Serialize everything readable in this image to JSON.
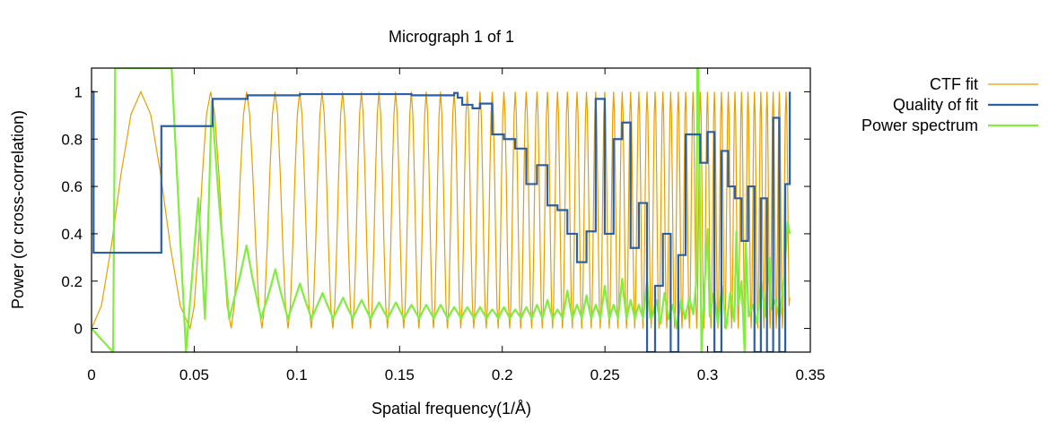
{
  "chart_data": {
    "type": "line",
    "title": "Micrograph 1 of 1",
    "xlabel": "Spatial frequency(1/Å)",
    "ylabel": "Power (or cross-correlation)",
    "xlim": [
      0,
      0.35
    ],
    "ylim": [
      -0.1,
      1.1
    ],
    "xticks": [
      0,
      0.05,
      0.1,
      0.15,
      0.2,
      0.25,
      0.3,
      0.35
    ],
    "xtick_labels": [
      "0",
      "0.05",
      "0.1",
      "0.15",
      "0.2",
      "0.25",
      "0.3",
      "0.35"
    ],
    "yticks": [
      0,
      0.2,
      0.4,
      0.6,
      0.8,
      1
    ],
    "ytick_labels": [
      "0",
      "0.2",
      "0.4",
      "0.6",
      "0.8",
      "1"
    ],
    "grid": false,
    "legend_position": "top-right, outside plot",
    "series": [
      {
        "name": "CTF fit",
        "color": "#e69f00",
        "kind": "oscillating CTF model",
        "x_range": [
          0,
          0.34
        ],
        "peak_x": [
          0.034,
          0.0585,
          0.0755,
          0.0895,
          0.1015,
          0.1125,
          0.1225,
          0.1315,
          0.14,
          0.1482,
          0.1558,
          0.163,
          0.17,
          0.1766,
          0.183,
          0.1892,
          0.1951,
          0.2008,
          0.2063,
          0.2117,
          0.2169,
          0.222,
          0.2269,
          0.2317,
          0.2364,
          0.241,
          0.2455,
          0.2499,
          0.2542,
          0.2584,
          0.2625,
          0.2665,
          0.2705,
          0.2744,
          0.2782,
          0.282,
          0.2857,
          0.2893,
          0.2929,
          0.2964,
          0.2999,
          0.3033,
          0.3067,
          0.31,
          0.3133,
          0.3165,
          0.3197,
          0.3228,
          0.3259,
          0.3289,
          0.3319,
          0.3349,
          0.3378
        ],
        "zero_x": [
          0.0,
          0.048,
          0.068,
          0.083,
          0.0957,
          0.107,
          0.1175,
          0.127,
          0.1358,
          0.1441,
          0.152,
          0.1594,
          0.1665,
          0.1733,
          0.1798,
          0.1861,
          0.1922,
          0.198,
          0.2036,
          0.209,
          0.2143,
          0.2195,
          0.2245,
          0.2293,
          0.2341,
          0.2387,
          0.2433,
          0.2477,
          0.2521,
          0.2563,
          0.2605,
          0.2645,
          0.2685,
          0.2725,
          0.2763,
          0.2801,
          0.2839,
          0.2875,
          0.2911,
          0.2947,
          0.2982,
          0.3016,
          0.305,
          0.3084,
          0.3117,
          0.3149,
          0.3181,
          0.3212,
          0.3244,
          0.3274,
          0.3304,
          0.3334,
          0.3364,
          0.34
        ],
        "end_value": 0.13
      },
      {
        "name": "Quality of fit",
        "color": "#2b5fa8",
        "kind": "step",
        "x": [
          0,
          0.001,
          0.034,
          0.059,
          0.076,
          0.1015,
          0.1125,
          0.1558,
          0.163,
          0.17,
          0.1766,
          0.1783,
          0.1805,
          0.1855,
          0.1892,
          0.1951,
          0.2008,
          0.2063,
          0.2117,
          0.2169,
          0.222,
          0.2269,
          0.2317,
          0.2364,
          0.241,
          0.2455,
          0.2499,
          0.2542,
          0.2584,
          0.2625,
          0.2665,
          0.2705,
          0.2744,
          0.2782,
          0.282,
          0.2857,
          0.2893,
          0.2929,
          0.2964,
          0.2999,
          0.3033,
          0.3067,
          0.31,
          0.3133,
          0.3165,
          0.3197,
          0.3228,
          0.3259,
          0.3289,
          0.3319,
          0.3349,
          0.3378,
          0.34
        ],
        "y": [
          1.0,
          0.32,
          0.855,
          0.97,
          0.985,
          0.99,
          0.99,
          0.985,
          0.985,
          0.985,
          0.995,
          0.975,
          0.945,
          0.93,
          0.95,
          0.82,
          0.8,
          0.76,
          0.61,
          0.69,
          0.52,
          0.5,
          0.4,
          0.28,
          0.41,
          0.97,
          0.4,
          0.8,
          0.87,
          0.34,
          0.53,
          -0.1,
          0.18,
          0.4,
          -0.1,
          0.31,
          0.82,
          0.82,
          0.7,
          0.83,
          -0.1,
          0.75,
          0.6,
          0.55,
          0.37,
          0.6,
          -0.1,
          0.55,
          -0.1,
          0.89,
          -0.1,
          0.61,
          1.0
        ]
      },
      {
        "name": "Power spectrum",
        "color": "#80ee3c",
        "kind": "noisy oscillating spectrum",
        "baseline_y": 0.05,
        "peak_x": [
          0.0585,
          0.0755,
          0.0895,
          0.1015,
          0.1125,
          0.1225,
          0.1315,
          0.14,
          0.1482,
          0.1558,
          0.163,
          0.17,
          0.1766,
          0.183,
          0.1892,
          0.1951,
          0.2008,
          0.2063,
          0.2117,
          0.2169,
          0.222,
          0.2269,
          0.2317,
          0.2364,
          0.241,
          0.2455,
          0.2499,
          0.2542,
          0.2584,
          0.2625,
          0.2665,
          0.2705
        ],
        "peak_y": [
          0.96,
          0.35,
          0.25,
          0.19,
          0.15,
          0.13,
          0.12,
          0.11,
          0.11,
          0.1,
          0.1,
          0.1,
          0.09,
          0.09,
          0.09,
          0.08,
          0.09,
          0.08,
          0.09,
          0.1,
          0.12,
          0.08,
          0.16,
          0.1,
          0.14,
          0.1,
          0.18,
          0.1,
          0.21,
          0.12,
          0.1,
          0.2
        ],
        "spikes": [
          {
            "x": 0.0115,
            "y": 1.1
          },
          {
            "x": 0.039,
            "y": 1.1
          },
          {
            "x": 0.046,
            "y": -0.1
          },
          {
            "x": 0.295,
            "y": 1.1
          },
          {
            "x": 0.297,
            "y": -0.1
          },
          {
            "x": 0.318,
            "y": -0.1
          },
          {
            "x": 0.318,
            "y": 0.36
          },
          {
            "x": 0.339,
            "y": 0.45
          },
          {
            "x": 0.3,
            "y": 0.42
          },
          {
            "x": 0.314,
            "y": 0.41
          },
          {
            "x": 0.33,
            "y": 0.3
          }
        ]
      }
    ]
  }
}
